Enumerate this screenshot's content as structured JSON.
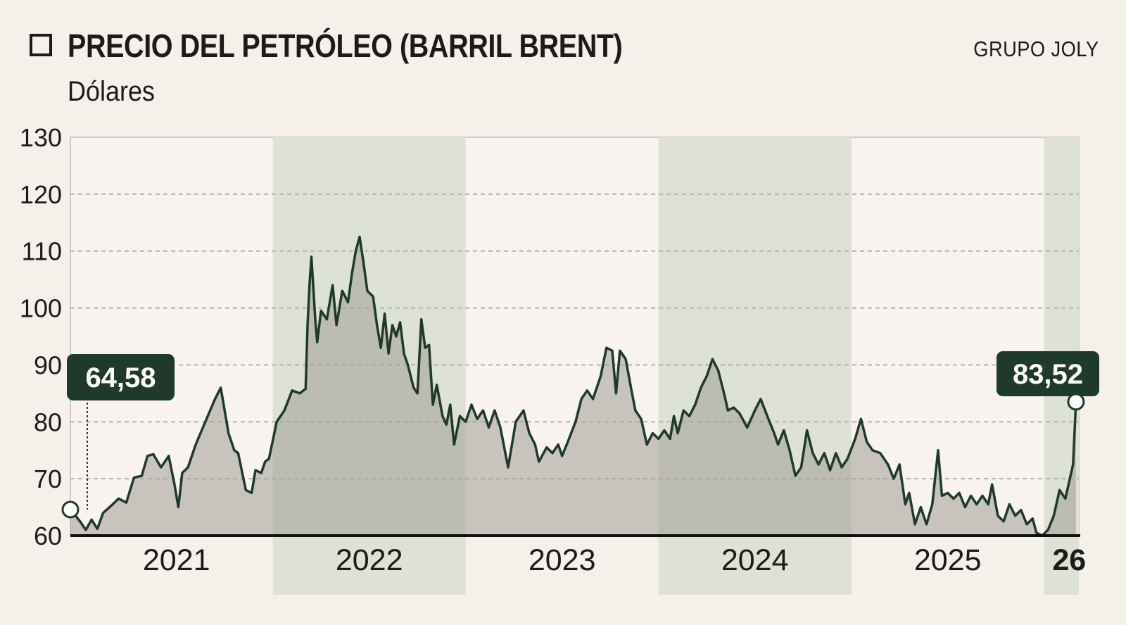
{
  "header": {
    "title": "PRECIO DEL PETRÓLEO (BARRIL BRENT)",
    "subtitle": "Dólares",
    "credit": "GRUPO JOLY"
  },
  "colors": {
    "background": "#f6f0ea",
    "band": "#dde2d5",
    "area": "#a09c96",
    "line": "#1f3a2b",
    "callout": "#1f3a2b",
    "grid": "#b7b1ac"
  },
  "chart_data": {
    "type": "area",
    "title": "PRECIO DEL PETRÓLEO (BARRIL BRENT)",
    "ylabel": "Dólares",
    "ylim": [
      60,
      130
    ],
    "yticks": [
      60,
      70,
      80,
      90,
      100,
      110,
      120,
      130
    ],
    "xlim": [
      2020.95,
      2026.18
    ],
    "grid": "horizontal dashed",
    "year_labels": [
      {
        "label": "2021",
        "x": 2021.5,
        "bold": false
      },
      {
        "label": "2022",
        "x": 2022.5,
        "bold": false
      },
      {
        "label": "2023",
        "x": 2023.5,
        "bold": false
      },
      {
        "label": "2024",
        "x": 2024.5,
        "bold": false
      },
      {
        "label": "2025",
        "x": 2025.5,
        "bold": false
      },
      {
        "label": "26",
        "x": 2026.13,
        "bold": true
      }
    ],
    "shaded_bands": [
      [
        2022.0,
        2023.0
      ],
      [
        2024.0,
        2025.0
      ],
      [
        2026.0,
        2026.18
      ]
    ],
    "series": [
      {
        "values": [
          [
            2020.95,
            64.58
          ],
          [
            2021.0,
            62.5
          ],
          [
            2021.03,
            61.0
          ],
          [
            2021.06,
            62.8
          ],
          [
            2021.09,
            61.2
          ],
          [
            2021.12,
            64.0
          ],
          [
            2021.16,
            65.2
          ],
          [
            2021.2,
            66.5
          ],
          [
            2021.24,
            65.8
          ],
          [
            2021.28,
            70.2
          ],
          [
            2021.32,
            70.5
          ],
          [
            2021.35,
            74.0
          ],
          [
            2021.38,
            74.3
          ],
          [
            2021.42,
            72.0
          ],
          [
            2021.46,
            74.0
          ],
          [
            2021.49,
            69.0
          ],
          [
            2021.51,
            65.0
          ],
          [
            2021.53,
            71.0
          ],
          [
            2021.56,
            72.0
          ],
          [
            2021.6,
            76.0
          ],
          [
            2021.65,
            80.0
          ],
          [
            2021.7,
            84.0
          ],
          [
            2021.73,
            86.0
          ],
          [
            2021.77,
            78.0
          ],
          [
            2021.8,
            75.0
          ],
          [
            2021.82,
            74.5
          ],
          [
            2021.86,
            68.0
          ],
          [
            2021.89,
            67.5
          ],
          [
            2021.91,
            71.5
          ],
          [
            2021.94,
            71.0
          ],
          [
            2021.96,
            73.0
          ],
          [
            2021.98,
            73.5
          ],
          [
            2022.02,
            80.0
          ],
          [
            2022.06,
            82.0
          ],
          [
            2022.1,
            85.5
          ],
          [
            2022.14,
            85.0
          ],
          [
            2022.17,
            85.8
          ],
          [
            2022.18,
            97.0
          ],
          [
            2022.19,
            104.0
          ],
          [
            2022.2,
            109.0
          ],
          [
            2022.22,
            98.0
          ],
          [
            2022.23,
            94.0
          ],
          [
            2022.25,
            99.5
          ],
          [
            2022.28,
            98.0
          ],
          [
            2022.31,
            104.0
          ],
          [
            2022.33,
            97.0
          ],
          [
            2022.36,
            103.0
          ],
          [
            2022.39,
            101.0
          ],
          [
            2022.41,
            106.0
          ],
          [
            2022.43,
            110.0
          ],
          [
            2022.45,
            112.5
          ],
          [
            2022.47,
            108.0
          ],
          [
            2022.49,
            103.0
          ],
          [
            2022.52,
            102.0
          ],
          [
            2022.54,
            97.0
          ],
          [
            2022.56,
            93.0
          ],
          [
            2022.58,
            99.0
          ],
          [
            2022.6,
            92.0
          ],
          [
            2022.62,
            97.0
          ],
          [
            2022.64,
            95.0
          ],
          [
            2022.66,
            97.5
          ],
          [
            2022.68,
            92.0
          ],
          [
            2022.7,
            90.0
          ],
          [
            2022.73,
            86.0
          ],
          [
            2022.75,
            85.0
          ],
          [
            2022.77,
            98.0
          ],
          [
            2022.79,
            93.0
          ],
          [
            2022.81,
            93.5
          ],
          [
            2022.83,
            83.0
          ],
          [
            2022.85,
            86.5
          ],
          [
            2022.88,
            81.0
          ],
          [
            2022.9,
            79.5
          ],
          [
            2022.92,
            83.0
          ],
          [
            2022.94,
            76.0
          ],
          [
            2022.97,
            81.0
          ],
          [
            2023.0,
            80.0
          ],
          [
            2023.03,
            83.0
          ],
          [
            2023.06,
            80.5
          ],
          [
            2023.09,
            82.0
          ],
          [
            2023.12,
            79.0
          ],
          [
            2023.15,
            82.0
          ],
          [
            2023.18,
            79.0
          ],
          [
            2023.22,
            72.0
          ],
          [
            2023.26,
            80.0
          ],
          [
            2023.3,
            82.0
          ],
          [
            2023.33,
            78.0
          ],
          [
            2023.36,
            76.0
          ],
          [
            2023.38,
            73.0
          ],
          [
            2023.42,
            75.5
          ],
          [
            2023.45,
            74.5
          ],
          [
            2023.48,
            76.0
          ],
          [
            2023.5,
            74.0
          ],
          [
            2023.53,
            76.5
          ],
          [
            2023.57,
            80.0
          ],
          [
            2023.6,
            84.0
          ],
          [
            2023.63,
            85.5
          ],
          [
            2023.66,
            84.0
          ],
          [
            2023.7,
            88.0
          ],
          [
            2023.73,
            93.0
          ],
          [
            2023.76,
            92.5
          ],
          [
            2023.78,
            85.0
          ],
          [
            2023.8,
            92.5
          ],
          [
            2023.83,
            91.0
          ],
          [
            2023.86,
            85.5
          ],
          [
            2023.88,
            82.0
          ],
          [
            2023.91,
            80.5
          ],
          [
            2023.94,
            76.0
          ],
          [
            2023.97,
            78.0
          ],
          [
            2024.0,
            77.0
          ],
          [
            2024.03,
            78.5
          ],
          [
            2024.06,
            77.0
          ],
          [
            2024.08,
            81.0
          ],
          [
            2024.1,
            78.0
          ],
          [
            2024.13,
            82.0
          ],
          [
            2024.16,
            81.0
          ],
          [
            2024.19,
            83.0
          ],
          [
            2024.22,
            86.0
          ],
          [
            2024.25,
            88.0
          ],
          [
            2024.28,
            91.0
          ],
          [
            2024.31,
            89.0
          ],
          [
            2024.34,
            85.0
          ],
          [
            2024.36,
            82.0
          ],
          [
            2024.39,
            82.5
          ],
          [
            2024.42,
            81.5
          ],
          [
            2024.46,
            79.0
          ],
          [
            2024.5,
            82.0
          ],
          [
            2024.53,
            84.0
          ],
          [
            2024.57,
            80.5
          ],
          [
            2024.6,
            78.0
          ],
          [
            2024.62,
            76.0
          ],
          [
            2024.65,
            78.5
          ],
          [
            2024.68,
            75.0
          ],
          [
            2024.71,
            70.5
          ],
          [
            2024.74,
            72.0
          ],
          [
            2024.77,
            78.5
          ],
          [
            2024.8,
            74.5
          ],
          [
            2024.83,
            72.5
          ],
          [
            2024.86,
            74.5
          ],
          [
            2024.89,
            71.5
          ],
          [
            2024.92,
            74.5
          ],
          [
            2024.95,
            72.0
          ],
          [
            2024.98,
            73.5
          ],
          [
            2025.02,
            77.0
          ],
          [
            2025.05,
            80.5
          ],
          [
            2025.08,
            76.5
          ],
          [
            2025.11,
            75.0
          ],
          [
            2025.15,
            74.5
          ],
          [
            2025.19,
            72.5
          ],
          [
            2025.22,
            70.0
          ],
          [
            2025.25,
            72.5
          ],
          [
            2025.28,
            65.5
          ],
          [
            2025.3,
            67.5
          ],
          [
            2025.33,
            62.0
          ],
          [
            2025.36,
            65.0
          ],
          [
            2025.39,
            62.0
          ],
          [
            2025.42,
            65.5
          ],
          [
            2025.45,
            75.0
          ],
          [
            2025.47,
            67.0
          ],
          [
            2025.5,
            67.5
          ],
          [
            2025.53,
            66.5
          ],
          [
            2025.56,
            67.5
          ],
          [
            2025.59,
            65.0
          ],
          [
            2025.62,
            67.0
          ],
          [
            2025.65,
            65.5
          ],
          [
            2025.68,
            67.0
          ],
          [
            2025.71,
            65.5
          ],
          [
            2025.73,
            69.0
          ],
          [
            2025.76,
            63.5
          ],
          [
            2025.79,
            62.5
          ],
          [
            2025.82,
            65.5
          ],
          [
            2025.85,
            63.5
          ],
          [
            2025.88,
            64.5
          ],
          [
            2025.91,
            62.0
          ],
          [
            2025.94,
            63.0
          ],
          [
            2025.96,
            60.5
          ],
          [
            2025.99,
            60.0
          ],
          [
            2026.02,
            61.0
          ],
          [
            2026.05,
            63.5
          ],
          [
            2026.08,
            68.0
          ],
          [
            2026.11,
            66.5
          ],
          [
            2026.13,
            69.5
          ],
          [
            2026.15,
            72.5
          ],
          [
            2026.165,
            83.52
          ]
        ]
      }
    ],
    "callouts": [
      {
        "label": "64,58",
        "x": 2020.95,
        "y": 64.58
      },
      {
        "label": "83,52",
        "x": 2026.165,
        "y": 83.52
      }
    ]
  }
}
